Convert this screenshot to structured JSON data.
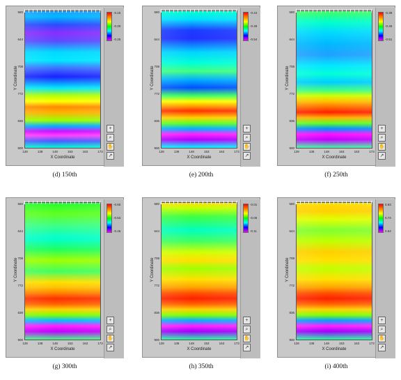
{
  "chart_data": [
    {
      "type": "heatmap",
      "caption": "(d) 150th",
      "xlabel": "X Coordinate",
      "ylabel": "Y Coordinate",
      "x_ticks": [
        "128",
        "138",
        "148",
        "153",
        "163",
        "173"
      ],
      "y_ticks": [
        "580",
        "644",
        "708",
        "772",
        "836",
        "900"
      ],
      "colorbar_ticks": [
        "-0.15",
        "-0.20",
        "-0.25"
      ],
      "bands": [
        [
          "#1f9bff",
          0
        ],
        [
          "#00b8ff",
          4
        ],
        [
          "#2a4cff",
          10
        ],
        [
          "#8a2dff",
          16
        ],
        [
          "#5a4cff",
          22
        ],
        [
          "#00d9ff",
          30
        ],
        [
          "#00e8ff",
          36
        ],
        [
          "#3f6bff",
          42
        ],
        [
          "#1a22ff",
          48
        ],
        [
          "#00e5ff",
          56
        ],
        [
          "#b8ff00",
          62
        ],
        [
          "#ffff00",
          66
        ],
        [
          "#ff8a00",
          70
        ],
        [
          "#ffb000",
          74
        ],
        [
          "#9aff00",
          80
        ],
        [
          "#00b0ff",
          84
        ],
        [
          "#d010ff",
          88
        ],
        [
          "#ff40ff",
          91
        ],
        [
          "#4a5cff",
          95
        ],
        [
          "#00ffd0",
          100
        ]
      ]
    },
    {
      "type": "heatmap",
      "caption": "(e) 200th",
      "xlabel": "X Coordinate",
      "ylabel": "Y Coordinate",
      "x_ticks": [
        "128",
        "138",
        "148",
        "153",
        "163",
        "173"
      ],
      "y_ticks": [
        "580",
        "644",
        "708",
        "772",
        "836",
        "900"
      ],
      "colorbar_ticks": [
        "-0.44",
        "-0.49",
        "-0.54"
      ],
      "bands": [
        [
          "#00ffcc",
          0
        ],
        [
          "#00e0ff",
          6
        ],
        [
          "#1a3cff",
          14
        ],
        [
          "#2030ff",
          20
        ],
        [
          "#00d4ff",
          30
        ],
        [
          "#00ffd8",
          38
        ],
        [
          "#40ff80",
          44
        ],
        [
          "#00b0ff",
          50
        ],
        [
          "#0050ff",
          56
        ],
        [
          "#40ff60",
          62
        ],
        [
          "#ffff00",
          66
        ],
        [
          "#ff9000",
          70
        ],
        [
          "#ff3000",
          73
        ],
        [
          "#ffd000",
          78
        ],
        [
          "#60ff20",
          82
        ],
        [
          "#00b0ff",
          86
        ],
        [
          "#ff20ff",
          90
        ],
        [
          "#b000ff",
          94
        ],
        [
          "#00ffff",
          100
        ]
      ]
    },
    {
      "type": "heatmap",
      "caption": "(f) 250th",
      "xlabel": "X Coordinate",
      "ylabel": "Y Coordinate",
      "x_ticks": [
        "128",
        "138",
        "148",
        "153",
        "163",
        "173"
      ],
      "y_ticks": [
        "580",
        "644",
        "708",
        "772",
        "836",
        "900"
      ],
      "colorbar_ticks": [
        "-0.39",
        "-0.45",
        "-0.51"
      ],
      "bands": [
        [
          "#40ff60",
          0
        ],
        [
          "#00ffcc",
          8
        ],
        [
          "#00d8ff",
          16
        ],
        [
          "#00b8ff",
          24
        ],
        [
          "#20a0ff",
          32
        ],
        [
          "#00e8ff",
          40
        ],
        [
          "#00ffd8",
          46
        ],
        [
          "#00ccff",
          52
        ],
        [
          "#40ff80",
          58
        ],
        [
          "#d0ff00",
          62
        ],
        [
          "#ffc000",
          66
        ],
        [
          "#ff7000",
          70
        ],
        [
          "#ff2000",
          74
        ],
        [
          "#ffb000",
          78
        ],
        [
          "#60ff20",
          82
        ],
        [
          "#0090ff",
          86
        ],
        [
          "#ff10ff",
          90
        ],
        [
          "#c000ff",
          94
        ],
        [
          "#40ffa0",
          100
        ]
      ]
    },
    {
      "type": "heatmap",
      "caption": "(g) 300th",
      "xlabel": "X Coordinate",
      "ylabel": "Y Coordinate",
      "x_ticks": [
        "128",
        "138",
        "148",
        "153",
        "163",
        "173"
      ],
      "y_ticks": [
        "580",
        "644",
        "708",
        "772",
        "836",
        "900"
      ],
      "colorbar_ticks": [
        "-0.60",
        "-0.53",
        "-0.46"
      ],
      "bands": [
        [
          "#20ff30",
          0
        ],
        [
          "#60ff20",
          8
        ],
        [
          "#40ff80",
          16
        ],
        [
          "#00ffd0",
          26
        ],
        [
          "#20ff60",
          34
        ],
        [
          "#a0ff00",
          42
        ],
        [
          "#40ff60",
          50
        ],
        [
          "#ffe000",
          58
        ],
        [
          "#ffc000",
          62
        ],
        [
          "#ff8000",
          66
        ],
        [
          "#ff3000",
          70
        ],
        [
          "#ff6000",
          74
        ],
        [
          "#ffd000",
          78
        ],
        [
          "#80ff00",
          82
        ],
        [
          "#00c0ff",
          86
        ],
        [
          "#ff20ff",
          90
        ],
        [
          "#c000ff",
          94
        ],
        [
          "#40ff80",
          100
        ]
      ]
    },
    {
      "type": "heatmap",
      "caption": "(h) 350th",
      "xlabel": "X Coordinate",
      "ylabel": "Y Coordinate",
      "x_ticks": [
        "128",
        "138",
        "148",
        "153",
        "163",
        "173"
      ],
      "y_ticks": [
        "580",
        "644",
        "708",
        "772",
        "836",
        "900"
      ],
      "colorbar_ticks": [
        "-0.01",
        "-0.06",
        "-0.11"
      ],
      "bands": [
        [
          "#ffe000",
          0
        ],
        [
          "#c0ff00",
          4
        ],
        [
          "#40ff40",
          10
        ],
        [
          "#00ffc0",
          20
        ],
        [
          "#40ff60",
          28
        ],
        [
          "#d0ff00",
          36
        ],
        [
          "#ffe000",
          42
        ],
        [
          "#a0ff00",
          48
        ],
        [
          "#ffe000",
          56
        ],
        [
          "#ffa000",
          62
        ],
        [
          "#ff5000",
          66
        ],
        [
          "#ff2000",
          70
        ],
        [
          "#ff6000",
          74
        ],
        [
          "#ffd000",
          78
        ],
        [
          "#80ff00",
          82
        ],
        [
          "#00b0ff",
          86
        ],
        [
          "#ff20ff",
          90
        ],
        [
          "#a000ff",
          94
        ],
        [
          "#20ffa0",
          100
        ]
      ]
    },
    {
      "type": "heatmap",
      "caption": "(i) 400th",
      "xlabel": "X Coordinate",
      "ylabel": "Y Coordinate",
      "x_ticks": [
        "128",
        "138",
        "148",
        "153",
        "163",
        "173"
      ],
      "y_ticks": [
        "580",
        "644",
        "708",
        "772",
        "836",
        "900"
      ],
      "colorbar_ticks": [
        "0.93",
        "0.74",
        "0.54"
      ],
      "bands": [
        [
          "#ffe000",
          0
        ],
        [
          "#ffd000",
          6
        ],
        [
          "#e0ff00",
          12
        ],
        [
          "#80ff30",
          20
        ],
        [
          "#c0ff00",
          28
        ],
        [
          "#ffd000",
          36
        ],
        [
          "#ffe000",
          42
        ],
        [
          "#c0ff00",
          48
        ],
        [
          "#ffe000",
          56
        ],
        [
          "#ffa000",
          62
        ],
        [
          "#ff5000",
          66
        ],
        [
          "#ff2000",
          70
        ],
        [
          "#ff6000",
          74
        ],
        [
          "#ffd000",
          78
        ],
        [
          "#80ff00",
          82
        ],
        [
          "#00a0ff",
          86
        ],
        [
          "#ff20ff",
          90
        ],
        [
          "#a000ff",
          94
        ],
        [
          "#20ffa0",
          100
        ]
      ]
    }
  ]
}
